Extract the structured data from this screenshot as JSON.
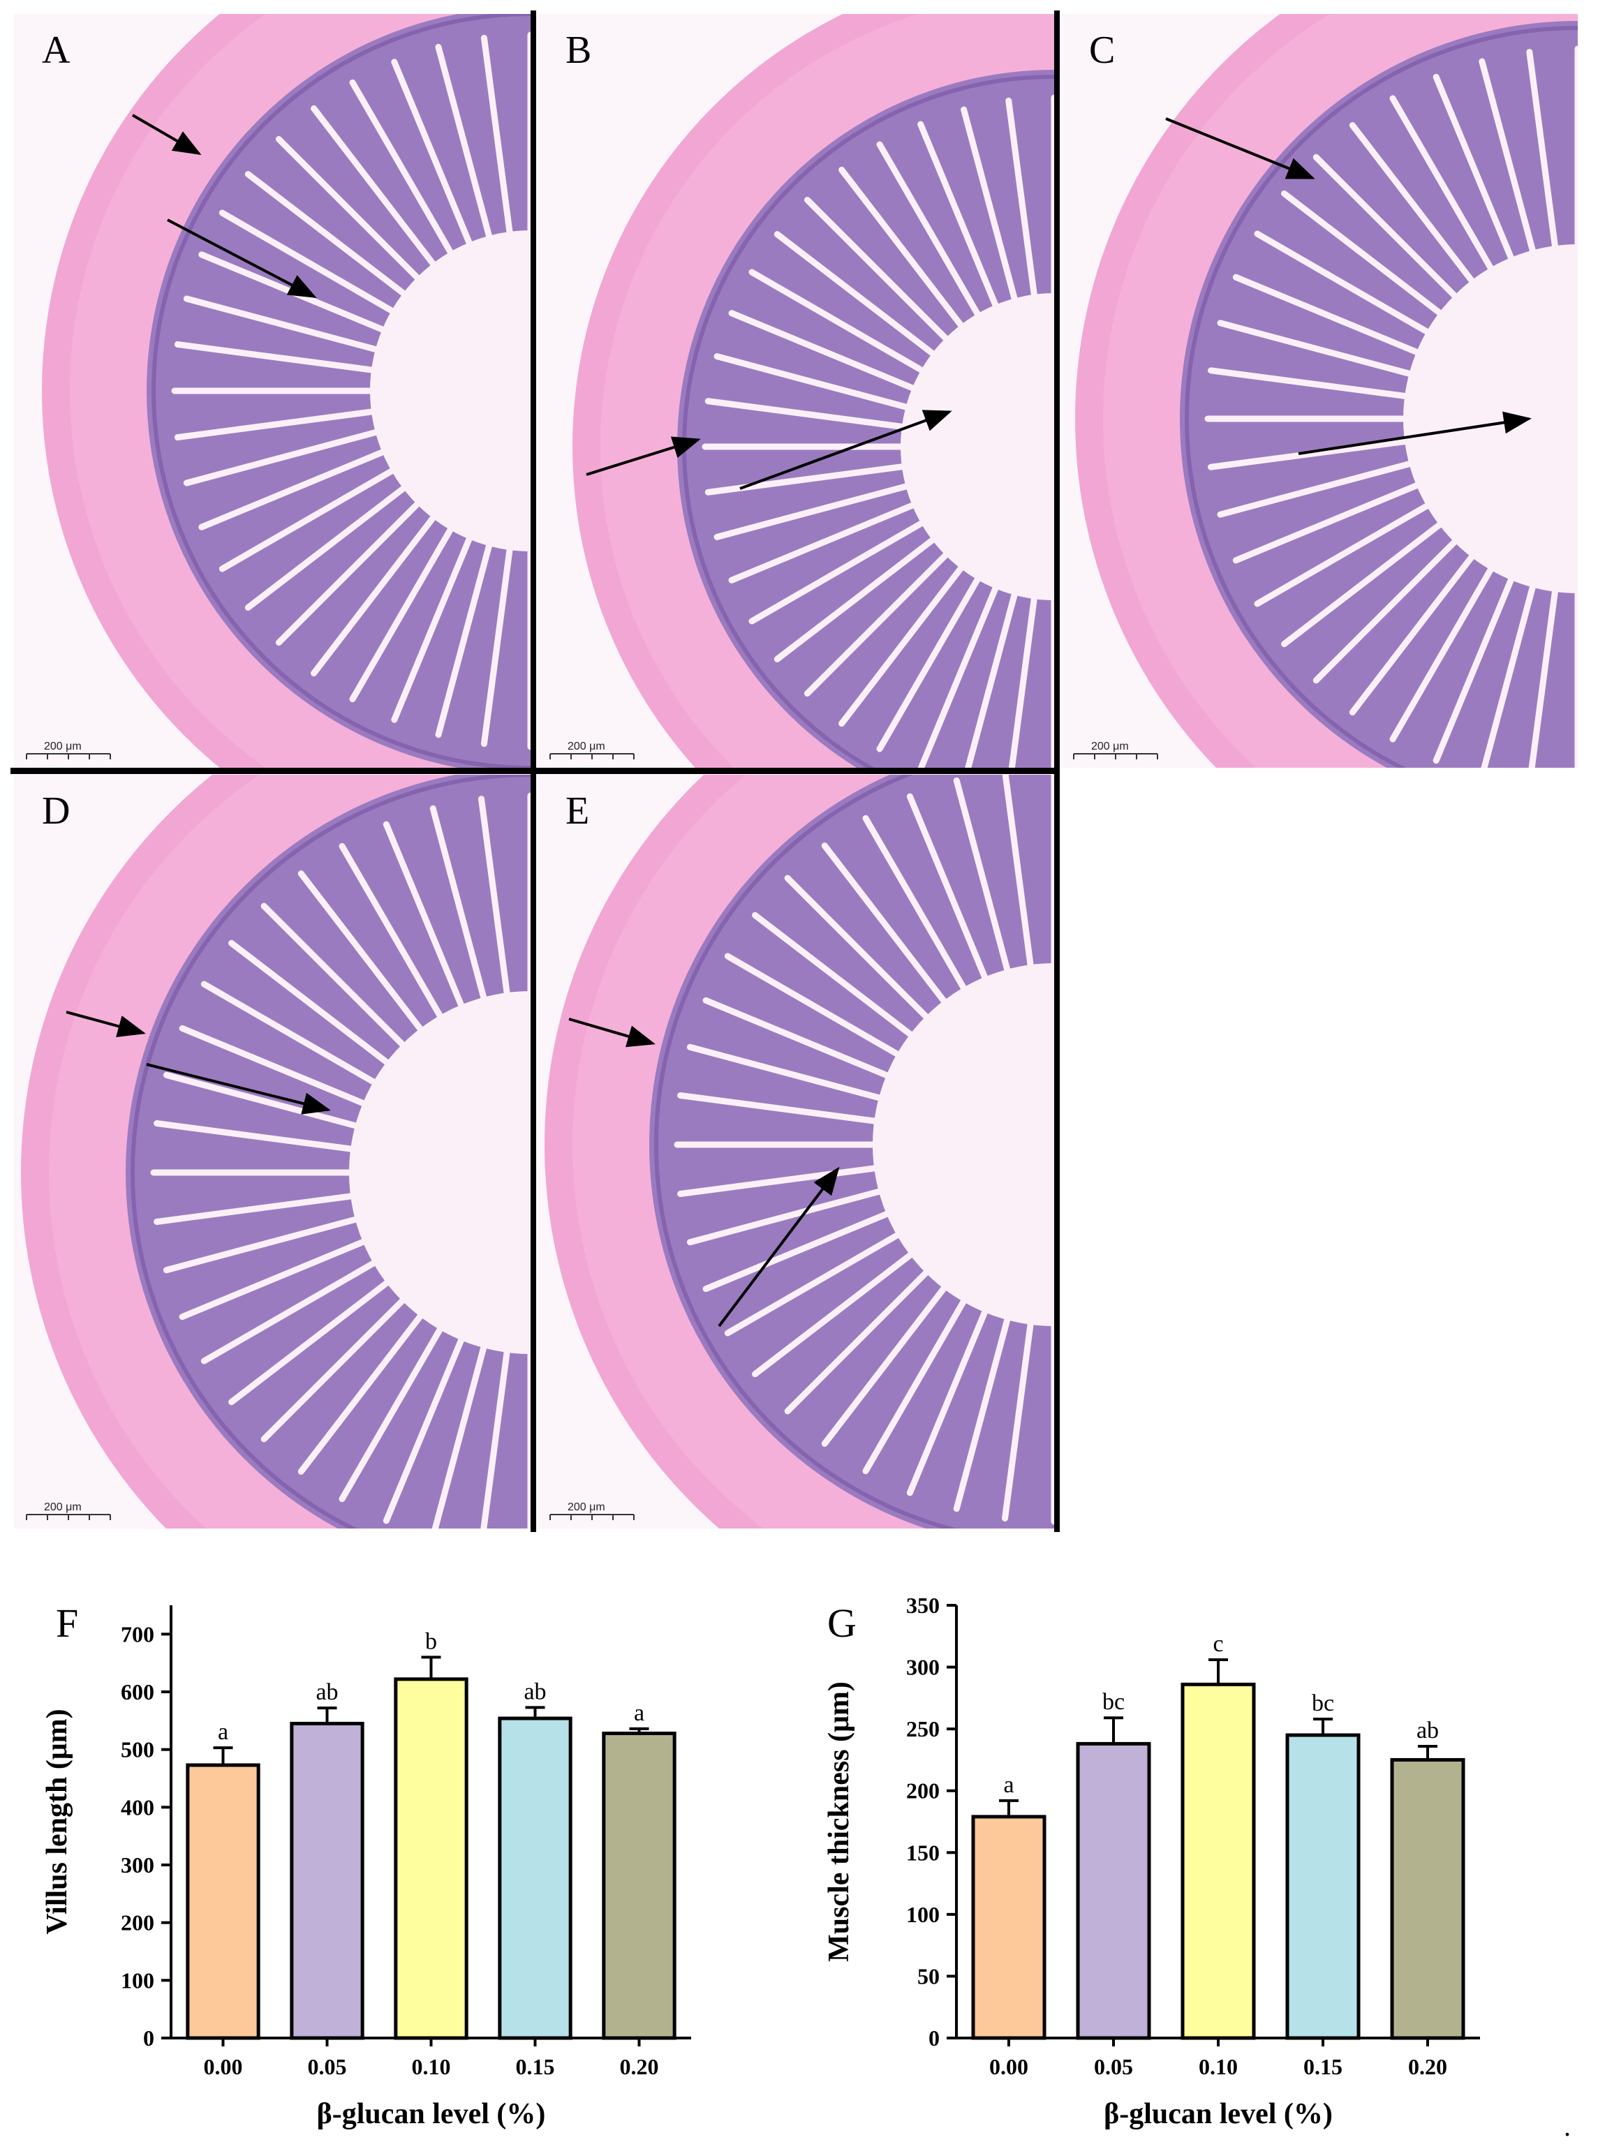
{
  "figure": {
    "histology_panels": [
      {
        "letter": "A",
        "scale_bar": "200 μm"
      },
      {
        "letter": "B",
        "scale_bar": "200 μm"
      },
      {
        "letter": "C",
        "scale_bar": "200 μm"
      },
      {
        "letter": "D",
        "scale_bar": "200 μm"
      },
      {
        "letter": "E",
        "scale_bar": "200 μm"
      }
    ],
    "colors": {
      "bar_fills": [
        "#FDC89A",
        "#BFB1D8",
        "#FEFE9E",
        "#B6E1E8",
        "#B2B38E"
      ],
      "tissue_muscle": "#F2A6D3",
      "tissue_mucosa": "#9B7BC0",
      "tissue_lumen": "#FBF0F8",
      "divider": "#000000"
    },
    "trailing_mark": "."
  },
  "chart_data": [
    {
      "panel_letter": "F",
      "type": "bar",
      "title": "",
      "xlabel": "β-glucan level (%)",
      "ylabel": "Villus length (μm)",
      "categories": [
        "0.00",
        "0.05",
        "0.10",
        "0.15",
        "0.20"
      ],
      "values": [
        473,
        545,
        622,
        554,
        528
      ],
      "errors": [
        30,
        27,
        38,
        19,
        8
      ],
      "significance_labels": [
        "a",
        "ab",
        "b",
        "ab",
        "a"
      ],
      "ylim": [
        0,
        750
      ],
      "yticks": [
        0,
        100,
        200,
        300,
        400,
        500,
        600,
        700
      ],
      "grid": false,
      "legend": "none"
    },
    {
      "panel_letter": "G",
      "type": "bar",
      "title": "",
      "xlabel": "β-glucan level (%)",
      "ylabel": "Muscle thickness (μm)",
      "categories": [
        "0.00",
        "0.05",
        "0.10",
        "0.15",
        "0.20"
      ],
      "values": [
        179,
        238,
        286,
        245,
        225
      ],
      "errors": [
        13,
        21,
        20,
        13,
        11
      ],
      "significance_labels": [
        "a",
        "bc",
        "c",
        "bc",
        "ab"
      ],
      "ylim": [
        0,
        350
      ],
      "yticks": [
        0,
        50,
        100,
        150,
        200,
        250,
        300,
        350
      ],
      "grid": false,
      "legend": "none"
    }
  ]
}
